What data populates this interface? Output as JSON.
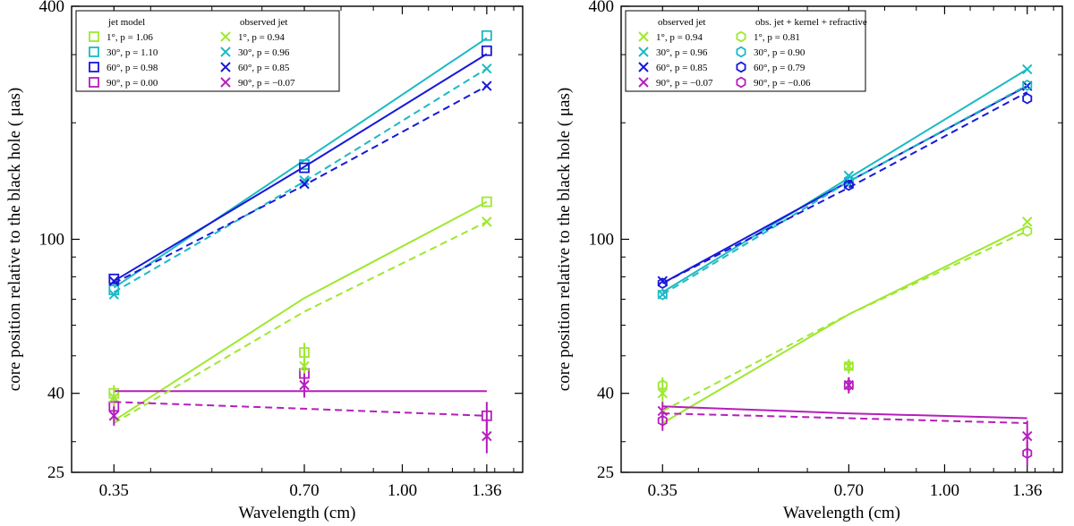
{
  "figure": {
    "title": ""
  },
  "chart_data": [
    {
      "type": "line",
      "panel": "left",
      "xscale": "log",
      "yscale": "log",
      "xlabel": "Wavelength (cm)",
      "ylabel": "core position relative to the black hole ( μas)",
      "xlim": [
        0.3,
        1.55
      ],
      "ylim": [
        25,
        400
      ],
      "xticks": [
        0.35,
        0.7,
        1.0,
        1.36
      ],
      "xtick_labels": [
        "0.35",
        "0.70",
        "1.00",
        "1.36"
      ],
      "yticks": [
        25,
        40,
        100,
        400
      ],
      "ytick_labels": [
        "25",
        "40",
        "100",
        "400"
      ],
      "x": [
        0.35,
        0.7,
        1.36
      ],
      "legend": {
        "position": "top-left",
        "headers": [
          "jet model",
          "observed jet"
        ],
        "columns": [
          [
            "1°, p = 1.06",
            "30°, p = 1.10",
            "60°, p = 0.98",
            "90°, p = 0.00"
          ],
          [
            "1°, p = 0.94",
            "30°, p = 0.96",
            "60°, p = 0.85",
            "90°, p = −0.07"
          ]
        ]
      },
      "series": [
        {
          "name": "jet model 1°, p = 1.06",
          "group": "jet model",
          "angle": "1°",
          "p": "1.06",
          "color": "#9ee830",
          "marker": "square",
          "line": "solid",
          "values": [
            40,
            51,
            125
          ],
          "yerr": [
            2,
            3,
            0
          ],
          "fit": [
            34,
            70.5,
            125
          ]
        },
        {
          "name": "jet model 30°, p = 1.10",
          "group": "jet model",
          "angle": "30°",
          "p": "1.10",
          "color": "#1bbac4",
          "marker": "square",
          "line": "solid",
          "values": [
            74,
            156,
            336
          ],
          "yerr": [
            0,
            0,
            0
          ],
          "fit": [
            75,
            160,
            331
          ]
        },
        {
          "name": "jet model 60°, p = 0.98",
          "group": "jet model",
          "angle": "60°",
          "p": "0.98",
          "color": "#1818d8",
          "marker": "square",
          "line": "solid",
          "values": [
            79,
            153,
            307
          ],
          "yerr": [
            0,
            0,
            0
          ],
          "fit": [
            78,
            154,
            301
          ]
        },
        {
          "name": "jet model 90°, p = 0.00",
          "group": "jet model",
          "angle": "90°",
          "p": "0.00",
          "color": "#b61ebc",
          "marker": "square",
          "line": "solid",
          "values": [
            37,
            45,
            35
          ],
          "yerr": [
            2,
            4,
            3
          ],
          "fit": [
            40.5,
            40.5,
            40.5
          ]
        },
        {
          "name": "observed jet 1°, p = 0.94",
          "group": "observed jet",
          "angle": "1°",
          "p": "0.94",
          "color": "#9ee830",
          "marker": "x",
          "line": "dashed",
          "values": [
            39,
            47,
            111
          ],
          "yerr": [
            2,
            3,
            0
          ],
          "fit": [
            33.5,
            65,
            111
          ]
        },
        {
          "name": "observed jet 30°, p = 0.96",
          "group": "observed jet",
          "angle": "30°",
          "p": "0.96",
          "color": "#1bbac4",
          "marker": "x",
          "line": "dashed",
          "values": [
            72,
            142,
            276
          ],
          "yerr": [
            0,
            0,
            0
          ],
          "fit": [
            73,
            141,
            276
          ]
        },
        {
          "name": "observed jet 60°, p = 0.85",
          "group": "observed jet",
          "angle": "60°",
          "p": "0.85",
          "color": "#1818d8",
          "marker": "x",
          "line": "dashed",
          "values": [
            78,
            139,
            249
          ],
          "yerr": [
            0,
            0,
            0
          ],
          "fit": [
            77,
            138,
            249
          ]
        },
        {
          "name": "observed jet 90°, p = −0.07",
          "group": "observed jet",
          "angle": "90°",
          "p": "−0.07",
          "color": "#b61ebc",
          "marker": "x",
          "line": "dashed",
          "values": [
            35,
            42,
            31
          ],
          "yerr": [
            2,
            3,
            3
          ],
          "fit": [
            38,
            36.5,
            35
          ]
        }
      ]
    },
    {
      "type": "line",
      "panel": "right",
      "xscale": "log",
      "yscale": "log",
      "xlabel": "Wavelength (cm)",
      "ylabel": "core position relative to the black hole ( μas)",
      "xlim": [
        0.3,
        1.55
      ],
      "ylim": [
        25,
        400
      ],
      "xticks": [
        0.35,
        0.7,
        1.0,
        1.36
      ],
      "xtick_labels": [
        "0.35",
        "0.70",
        "1.00",
        "1.36"
      ],
      "yticks": [
        25,
        40,
        100,
        400
      ],
      "ytick_labels": [
        "25",
        "40",
        "100",
        "400"
      ],
      "x": [
        0.35,
        0.7,
        1.36
      ],
      "legend": {
        "position": "top-left",
        "headers": [
          "observed jet",
          "obs. jet + kernel + refractive"
        ],
        "columns": [
          [
            "1°, p = 0.94",
            "30°, p = 0.96",
            "60°, p = 0.85",
            "90°, p = −0.07"
          ],
          [
            "1°, p = 0.81",
            "30°, p = 0.90",
            "60°, p = 0.79",
            "90°, p = −0.06"
          ]
        ]
      },
      "series": [
        {
          "name": "observed jet 1°, p = 0.94",
          "group": "observed jet",
          "angle": "1°",
          "p": "0.94",
          "color": "#9ee830",
          "marker": "x",
          "line": "solid",
          "values": [
            40,
            47,
            111
          ],
          "yerr": [
            2,
            2,
            0
          ],
          "fit": [
            33.5,
            64,
            108
          ]
        },
        {
          "name": "observed jet 30°, p = 0.96",
          "group": "observed jet",
          "angle": "30°",
          "p": "0.96",
          "color": "#1bbac4",
          "marker": "x",
          "line": "solid",
          "values": [
            72,
            146,
            275
          ],
          "yerr": [
            0,
            0,
            0
          ],
          "fit": [
            73,
            144,
            275
          ]
        },
        {
          "name": "observed jet 60°, p = 0.85",
          "group": "observed jet",
          "angle": "60°",
          "p": "0.85",
          "color": "#1818d8",
          "marker": "x",
          "line": "solid",
          "values": [
            78,
            139,
            249
          ],
          "yerr": [
            0,
            0,
            0
          ],
          "fit": [
            77,
            141,
            249
          ]
        },
        {
          "name": "observed jet 90°, p = −0.07",
          "group": "observed jet",
          "angle": "90°",
          "p": "−0.07",
          "color": "#b61ebc",
          "marker": "x",
          "line": "solid",
          "values": [
            36,
            42,
            31
          ],
          "yerr": [
            2,
            2,
            3
          ],
          "fit": [
            37,
            35.5,
            34.5
          ]
        },
        {
          "name": "obs. jet + kernel + refractive 1°, p = 0.81",
          "group": "obs. jet + kernel + refractive",
          "angle": "1°",
          "p": "0.81",
          "color": "#9ee830",
          "marker": "hexagon",
          "line": "dashed",
          "values": [
            42,
            47,
            105
          ],
          "yerr": [
            2,
            2,
            0
          ],
          "fit": [
            36,
            64,
            105
          ]
        },
        {
          "name": "obs. jet + kernel + refractive 30°, p = 0.90",
          "group": "obs. jet + kernel + refractive",
          "angle": "30°",
          "p": "0.90",
          "color": "#1bbac4",
          "marker": "hexagon",
          "line": "dashed",
          "values": [
            72,
            142,
            250
          ],
          "yerr": [
            0,
            0,
            0
          ],
          "fit": [
            72,
            141,
            250
          ]
        },
        {
          "name": "obs. jet + kernel + refractive 60°, p = 0.79",
          "group": "obs. jet + kernel + refractive",
          "angle": "60°",
          "p": "0.79",
          "color": "#1818d8",
          "marker": "hexagon",
          "line": "dashed",
          "values": [
            77,
            138,
            231
          ],
          "yerr": [
            0,
            0,
            0
          ],
          "fit": [
            77,
            136,
            240
          ]
        },
        {
          "name": "obs. jet + kernel + refractive 90°, p = −0.06",
          "group": "obs. jet + kernel + refractive",
          "angle": "90°",
          "p": "−0.06",
          "color": "#b61ebc",
          "marker": "hexagon",
          "line": "dashed",
          "values": [
            34,
            42,
            28
          ],
          "yerr": [
            2,
            2,
            2
          ],
          "fit": [
            35.5,
            34.5,
            33.5
          ]
        }
      ]
    }
  ]
}
